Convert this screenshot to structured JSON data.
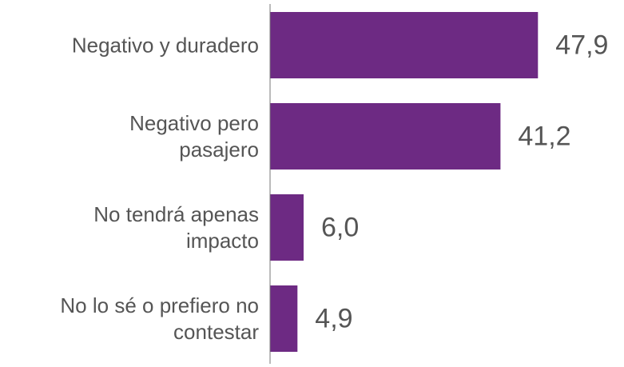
{
  "chart_data": {
    "type": "bar",
    "orientation": "horizontal",
    "categories": [
      "Negativo y duradero",
      "Negativo pero\npasajero",
      "No tendrá apenas\nimpacto",
      "No lo sé o prefiero no\ncontestar"
    ],
    "values": [
      47.9,
      41.2,
      6.0,
      4.9
    ],
    "value_labels": [
      "47,9",
      "41,2",
      "6,0",
      "4,9"
    ],
    "color": "#6d2a83",
    "xlim": [
      0,
      60
    ]
  }
}
